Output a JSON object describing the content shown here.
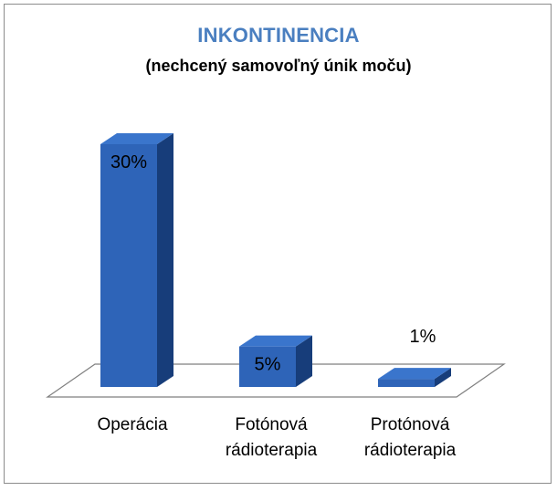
{
  "chart_data": {
    "type": "bar",
    "title": "INKONTINENCIA",
    "subtitle": "(nechcený samovoľný únik moču)",
    "categories": [
      [
        "Operácia"
      ],
      [
        "Fotónová",
        "rádioterapia"
      ],
      [
        "Protónová",
        "rádioterapia"
      ]
    ],
    "values": [
      30,
      5,
      1
    ],
    "data_labels": [
      "30%",
      "5%",
      "1%"
    ],
    "ylim": [
      0,
      30
    ],
    "legend": "none",
    "grid": false,
    "colors": {
      "bar_front": "#2e64b8",
      "bar_side": "#173d7a",
      "bar_top": "#3a75cc",
      "floor": "#ffffff",
      "title": "#4a7fc0"
    }
  }
}
